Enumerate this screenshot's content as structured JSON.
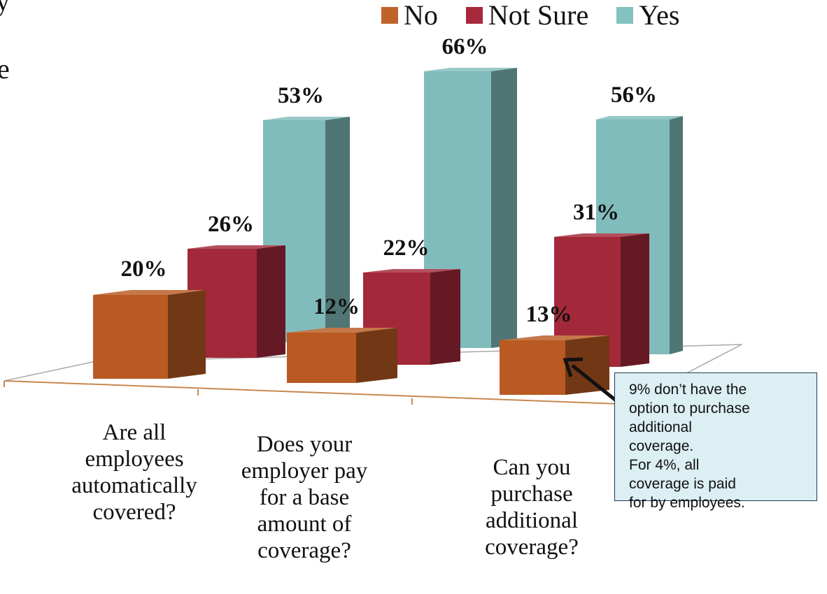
{
  "chart_data": {
    "type": "bar",
    "categories": [
      [
        "Are all",
        "employees",
        "automatically",
        "covered?"
      ],
      [
        "Does your",
        "employer pay",
        "for a base",
        "amount of",
        "coverage?"
      ],
      [
        "Can you",
        "purchase",
        "additional",
        "coverage?"
      ]
    ],
    "series": [
      {
        "name": "No",
        "values": [
          20,
          12,
          13
        ],
        "labels": [
          "20%",
          "12%",
          "13%"
        ]
      },
      {
        "name": "Not Sure",
        "values": [
          26,
          22,
          31
        ],
        "labels": [
          "26%",
          "22%",
          "31%"
        ]
      },
      {
        "name": "Yes",
        "values": [
          53,
          66,
          56
        ],
        "labels": [
          "53%",
          "66%",
          "56%"
        ]
      }
    ],
    "legend_position": "top-right",
    "ylim": [
      0,
      70
    ]
  },
  "colors": {
    "No": "#b85a22",
    "Not Sure": "#a3283a",
    "Yes": "#80bcbb"
  },
  "cropped_text": [
    "y",
    "e"
  ],
  "callout": {
    "lines": [
      "9% don’t have the",
      "option to purchase",
      "additional",
      "coverage.",
      "For 4%, all",
      "coverage is paid",
      "for by employees."
    ]
  }
}
